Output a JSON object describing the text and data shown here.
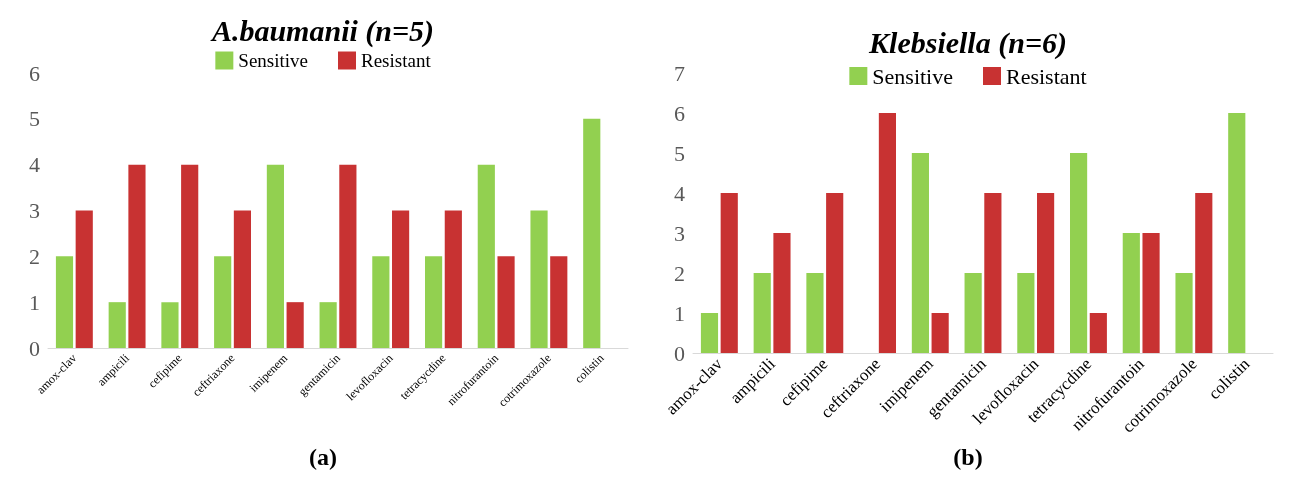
{
  "chart_data": [
    {
      "type": "bar",
      "title": "A.baumanii (n=5)",
      "categories": [
        "amox-clav",
        "ampicili",
        "cefipime",
        "ceftriaxone",
        "imipenem",
        "gentamicin",
        "levofloxacin",
        "tetracycdine",
        "nitrofurantoin",
        "cotrimoxazole",
        "colistin"
      ],
      "series": [
        {
          "name": "Sensitive",
          "color": "#92d050",
          "values": [
            2,
            1,
            1,
            2,
            4,
            1,
            2,
            2,
            4,
            3,
            5
          ]
        },
        {
          "name": "Resistant",
          "color": "#c83232",
          "values": [
            3,
            4,
            4,
            3,
            1,
            4,
            3,
            3,
            2,
            2,
            0
          ]
        }
      ],
      "ylim": [
        0,
        6
      ],
      "yticks": [
        0,
        1,
        2,
        3,
        4,
        5,
        6
      ],
      "grid": false,
      "legend": "top",
      "annotations": [
        "(a)"
      ]
    },
    {
      "type": "bar",
      "title": "Klebsiella (n=6)",
      "categories": [
        "amox-clav",
        "ampicili",
        "cefipime",
        "ceftriaxone",
        "imipenem",
        "gentamicin",
        "levofloxacin",
        "tetracycdine",
        "nitrofurantoin",
        "cotrimoxazole",
        "colistin"
      ],
      "series": [
        {
          "name": "Sensitive",
          "color": "#92d050",
          "values": [
            1,
            2,
            2,
            0,
            5,
            2,
            2,
            5,
            3,
            2,
            6
          ]
        },
        {
          "name": "Resistant",
          "color": "#c83232",
          "values": [
            4,
            3,
            4,
            6,
            1,
            4,
            4,
            1,
            3,
            4,
            0
          ]
        }
      ],
      "ylim": [
        0,
        7
      ],
      "yticks": [
        0,
        1,
        2,
        3,
        4,
        5,
        6,
        7
      ],
      "grid": false,
      "legend": "top",
      "annotations": [
        "(b)"
      ]
    }
  ]
}
